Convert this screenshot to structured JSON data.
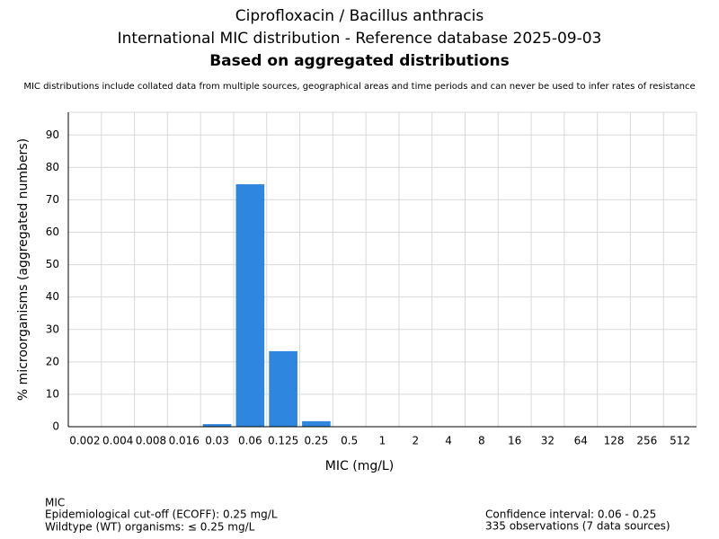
{
  "chart_data": {
    "type": "bar",
    "title": "Ciprofloxacin / Bacillus anthracis",
    "subtitle": "International MIC distribution - Reference database 2025-09-03",
    "heading": "Based on aggregated distributions",
    "note": "MIC distributions include collated data from multiple sources, geographical areas and time periods and can never be used to infer rates of resistance",
    "x_label": "MIC (mg/L)",
    "y_label": "% microorganisms (aggregated numbers)",
    "categories": [
      "0.002",
      "0.004",
      "0.008",
      "0.016",
      "0.03",
      "0.06",
      "0.125",
      "0.25",
      "0.5",
      "1",
      "2",
      "4",
      "8",
      "16",
      "32",
      "64",
      "128",
      "256",
      "512"
    ],
    "values": [
      0,
      0,
      0,
      0,
      0.8,
      74.8,
      23.3,
      1.7,
      0,
      0,
      0,
      0,
      0,
      0,
      0,
      0,
      0,
      0,
      0
    ],
    "color": "#2e86de",
    "ylim": [
      0,
      97
    ],
    "yticks": [
      0,
      10,
      20,
      30,
      40,
      50,
      60,
      70,
      80,
      90
    ],
    "grid": true
  },
  "footer": {
    "left": [
      "MIC",
      "Epidemiological cut-off (ECOFF): 0.25 mg/L",
      "Wildtype (WT) organisms: ≤ 0.25 mg/L"
    ],
    "right": [
      "Confidence interval: 0.06 - 0.25",
      "335 observations (7 data sources)"
    ]
  }
}
